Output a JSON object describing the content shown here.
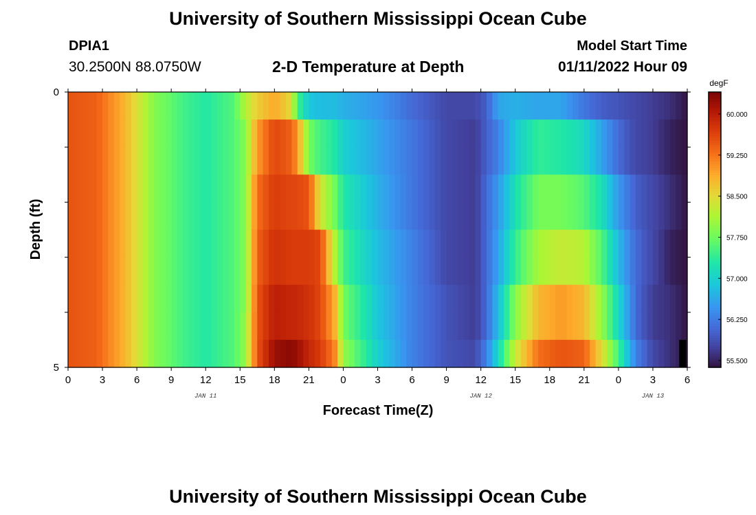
{
  "page": {
    "title_top": "University of Southern Mississippi Ocean Cube",
    "title_bottom": "University of Southern Mississippi Ocean Cube",
    "station_id": "DPIA1",
    "station_coords": "30.2500N  88.0750W",
    "plot_title": "2-D Temperature at Depth",
    "model_label": "Model Start Time",
    "model_time": "01/11/2022 Hour 09"
  },
  "chart_data": {
    "type": "heatmap",
    "title": "2-D Temperature at Depth",
    "xlabel": "Forecast Time(Z)",
    "ylabel": "Depth (ft)",
    "units": "degF",
    "x_tick_labels": [
      "0",
      "3",
      "6",
      "9",
      "12",
      "15",
      "18",
      "21",
      "0",
      "3",
      "6",
      "9",
      "12",
      "15",
      "18",
      "21",
      "0",
      "3",
      "6"
    ],
    "x_hours": [
      0,
      3,
      6,
      9,
      12,
      15,
      18,
      21,
      24,
      27,
      30,
      33,
      36,
      39,
      42,
      45,
      48,
      51,
      54
    ],
    "x_range_hours": [
      0,
      54
    ],
    "date_labels": [
      {
        "text": "JAN 11",
        "hour": 12
      },
      {
        "text": "JAN 12",
        "hour": 36
      },
      {
        "text": "JAN 13",
        "hour": 51
      }
    ],
    "y_tick_labels": [
      "0",
      "5"
    ],
    "y_range": [
      0,
      5
    ],
    "depth_levels": [
      0.25,
      0.75,
      1.25,
      1.75,
      2.25,
      2.75,
      3.25,
      3.75,
      4.25,
      4.75
    ],
    "colorbar": {
      "label": "degF",
      "min": 55.375,
      "max": 60.4,
      "ticks": [
        "60.000",
        "59.250",
        "58.500",
        "57.750",
        "57.000",
        "56.250",
        "55.500"
      ],
      "tick_values": [
        60.0,
        59.25,
        58.5,
        57.75,
        57.0,
        56.25,
        55.5
      ]
    },
    "time_keyframes": [
      {
        "h": 0,
        "t": [
          59.5,
          59.5,
          59.5,
          59.5,
          59.5,
          59.5,
          59.5,
          59.5,
          59.5,
          59.5
        ]
      },
      {
        "h": 2.5,
        "t": [
          59.4,
          59.4,
          59.4,
          59.4,
          59.4,
          59.4,
          59.4,
          59.4,
          59.4,
          59.4
        ]
      },
      {
        "h": 5,
        "t": [
          58.8,
          58.8,
          58.8,
          58.8,
          58.8,
          58.8,
          58.8,
          58.8,
          58.8,
          58.8
        ]
      },
      {
        "h": 7.5,
        "t": [
          57.9,
          57.9,
          57.9,
          57.9,
          57.9,
          57.9,
          57.9,
          57.9,
          57.9,
          57.9
        ]
      },
      {
        "h": 10,
        "t": [
          57.5,
          57.5,
          57.5,
          57.5,
          57.5,
          57.5,
          57.5,
          57.5,
          57.5,
          57.5
        ]
      },
      {
        "h": 12,
        "t": [
          57.3,
          57.3,
          57.3,
          57.3,
          57.3,
          57.3,
          57.3,
          57.3,
          57.3,
          57.3
        ]
      },
      {
        "h": 14.5,
        "t": [
          57.6,
          57.6,
          57.6,
          57.6,
          57.6,
          57.6,
          57.6,
          57.6,
          57.6,
          57.6
        ]
      },
      {
        "h": 15.5,
        "t": [
          58.2,
          57.9,
          57.9,
          57.9,
          57.9,
          57.9,
          57.9,
          57.9,
          58.0,
          58.0
        ]
      },
      {
        "h": 16.5,
        "t": [
          58.6,
          59.0,
          59.0,
          59.3,
          59.3,
          59.4,
          59.4,
          59.5,
          59.5,
          59.5
        ]
      },
      {
        "h": 18,
        "t": [
          58.9,
          59.6,
          59.6,
          59.7,
          59.7,
          59.8,
          59.8,
          60.0,
          60.0,
          60.2
        ]
      },
      {
        "h": 19.5,
        "t": [
          58.5,
          59.4,
          59.4,
          59.6,
          59.6,
          59.7,
          59.7,
          59.9,
          59.9,
          60.3
        ]
      },
      {
        "h": 20,
        "t": [
          57.5,
          59.0,
          59.0,
          59.6,
          59.6,
          59.7,
          59.7,
          59.9,
          59.9,
          60.2
        ]
      },
      {
        "h": 21,
        "t": [
          56.9,
          57.8,
          57.8,
          59.5,
          59.5,
          59.7,
          59.7,
          59.8,
          59.8,
          59.9
        ]
      },
      {
        "h": 22,
        "t": [
          56.8,
          57.5,
          57.5,
          58.4,
          58.4,
          59.6,
          59.6,
          59.6,
          59.6,
          59.7
        ]
      },
      {
        "h": 23.2,
        "t": [
          56.8,
          57.3,
          57.3,
          57.8,
          57.8,
          58.2,
          58.2,
          58.9,
          58.9,
          59.2
        ]
      },
      {
        "h": 24,
        "t": [
          56.7,
          57.0,
          57.0,
          57.3,
          57.3,
          57.5,
          57.5,
          57.8,
          57.8,
          58.0
        ]
      },
      {
        "h": 27,
        "t": [
          56.5,
          56.6,
          56.6,
          56.7,
          56.7,
          56.8,
          56.8,
          56.9,
          56.9,
          57.0
        ]
      },
      {
        "h": 30,
        "t": [
          56.1,
          56.2,
          56.2,
          56.2,
          56.2,
          56.3,
          56.3,
          56.3,
          56.3,
          56.3
        ]
      },
      {
        "h": 33,
        "t": [
          55.8,
          55.8,
          55.8,
          55.8,
          55.8,
          55.8,
          55.8,
          55.9,
          55.9,
          55.9
        ]
      },
      {
        "h": 35.5,
        "t": [
          55.8,
          55.7,
          55.7,
          55.7,
          55.7,
          55.7,
          55.7,
          55.7,
          55.7,
          55.8
        ]
      },
      {
        "h": 36.5,
        "t": [
          56.0,
          56.0,
          56.0,
          56.1,
          56.1,
          56.1,
          56.1,
          56.1,
          56.1,
          56.3
        ]
      },
      {
        "h": 37.5,
        "t": [
          56.6,
          56.3,
          56.3,
          56.5,
          56.5,
          56.6,
          56.6,
          56.8,
          56.8,
          57.1
        ]
      },
      {
        "h": 39,
        "t": [
          56.7,
          56.9,
          56.9,
          57.2,
          57.2,
          57.4,
          57.4,
          57.9,
          57.9,
          58.3
        ]
      },
      {
        "h": 41,
        "t": [
          56.6,
          57.4,
          57.4,
          57.8,
          57.8,
          58.1,
          58.1,
          58.8,
          58.8,
          59.3
        ]
      },
      {
        "h": 43,
        "t": [
          56.6,
          57.3,
          57.3,
          57.8,
          57.8,
          58.3,
          58.3,
          59.0,
          59.0,
          59.5
        ]
      },
      {
        "h": 45,
        "t": [
          56.2,
          57.1,
          57.1,
          57.6,
          57.6,
          58.2,
          58.2,
          58.8,
          58.8,
          59.4
        ]
      },
      {
        "h": 46.5,
        "t": [
          56.0,
          56.6,
          56.6,
          57.2,
          57.2,
          57.6,
          57.6,
          58.0,
          58.0,
          58.5
        ]
      },
      {
        "h": 48,
        "t": [
          55.9,
          56.1,
          56.1,
          56.5,
          56.5,
          56.8,
          56.8,
          57.1,
          57.1,
          57.5
        ]
      },
      {
        "h": 49.5,
        "t": [
          55.8,
          55.8,
          55.8,
          56.0,
          56.0,
          56.1,
          56.1,
          56.1,
          56.1,
          56.3
        ]
      },
      {
        "h": 51,
        "t": [
          55.7,
          55.7,
          55.7,
          55.8,
          55.8,
          55.8,
          55.8,
          55.7,
          55.7,
          55.8
        ]
      },
      {
        "h": 52.5,
        "t": [
          55.6,
          55.5,
          55.5,
          55.6,
          55.6,
          55.5,
          55.5,
          55.6,
          55.6,
          55.6
        ]
      },
      {
        "h": 54,
        "t": [
          55.4,
          55.4,
          55.4,
          55.4,
          55.4,
          55.4,
          55.4,
          55.4,
          55.4,
          55.4
        ]
      }
    ],
    "palette": {
      "axis_color": "#000000",
      "missing_color": "#000000"
    }
  }
}
